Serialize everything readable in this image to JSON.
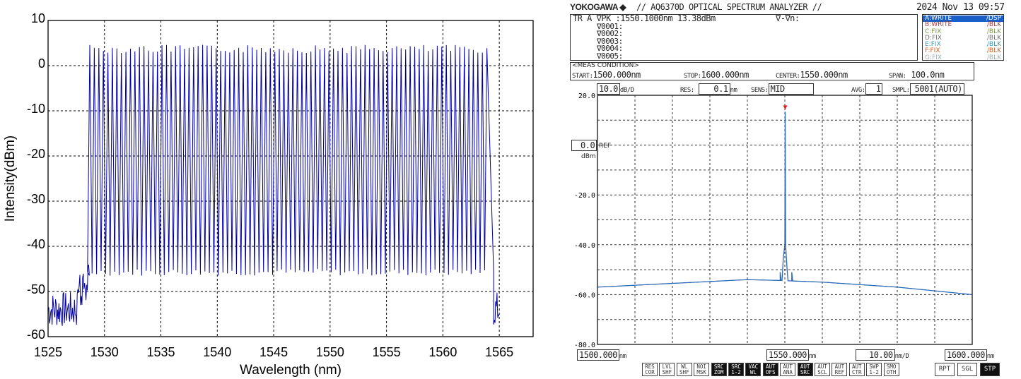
{
  "chart_data": [
    {
      "type": "line",
      "xlabel": "Wavelength (nm)",
      "ylabel": "Intensity(dBm)",
      "xlim": [
        1525,
        1568
      ],
      "ylim": [
        -60,
        10
      ],
      "xticks": [
        "1525",
        "1530",
        "1535",
        "1540",
        "1545",
        "1550",
        "1555",
        "1560",
        "1565"
      ],
      "yticks": [
        "10",
        "0",
        "-10",
        "-20",
        "-30",
        "-40",
        "-50",
        "-60"
      ],
      "grid": true,
      "line_color": "#0000a0",
      "series": [
        {
          "comb_start_nm": 1528.7,
          "comb_end_nm": 1564.3,
          "line_spacing_nm": 0.4,
          "peak_dbm": 4,
          "valley_dbm": -46,
          "noise_floor_dbm": [
            -58,
            -50
          ],
          "data_start_nm": 1525,
          "data_end_nm": 1565
        }
      ]
    },
    {
      "type": "line",
      "xlim": [
        1500,
        1600
      ],
      "ylim": [
        -80,
        20
      ],
      "yticks": [
        "20.0",
        "-20.0",
        "-40.0",
        "-60.0",
        "-80.0"
      ],
      "grid": true,
      "line_color": "#2a6ab8",
      "peak": {
        "x": 1550.1,
        "y": 13.38
      },
      "baseline": [
        [
          1500,
          -57
        ],
        [
          1520,
          -55.5
        ],
        [
          1540,
          -54
        ],
        [
          1548,
          -54.3
        ],
        [
          1560,
          -55
        ],
        [
          1580,
          -57
        ],
        [
          1600,
          -60
        ]
      ],
      "side_peaks": [
        [
          1548.7,
          -51
        ],
        [
          1551.9,
          -51
        ]
      ]
    }
  ],
  "osa": {
    "brand": "YOKOGAWA",
    "title": "// AQ6370D OPTICAL SPECTRUM ANALYZER //",
    "datetime": "2024 Nov 13 09:57",
    "marker_line": "TR A ∇PK  :1550.1000nm    13.38dBm",
    "delta_label": "∇-∇n:",
    "markers": [
      "∇0001:",
      "∇0002:",
      "∇0003:",
      "∇0004:",
      "∇0005:"
    ],
    "traces": [
      {
        "name": "A:WRITE",
        "mode": "/DSP",
        "color": "#ffffff",
        "bg": "#1a5fc8"
      },
      {
        "name": "B:WRITE",
        "mode": "/BLK",
        "color": "#b03a3a",
        "bg": ""
      },
      {
        "name": "C:FIX",
        "mode": "/BLK",
        "color": "#7a9a40",
        "bg": ""
      },
      {
        "name": "D:FIX",
        "mode": "/BLK",
        "color": "#707070",
        "bg": ""
      },
      {
        "name": "E:FIX",
        "mode": "/BLK",
        "color": "#3a9ab0",
        "bg": ""
      },
      {
        "name": "F:FIX",
        "mode": "/BLK",
        "color": "#e06020",
        "bg": ""
      },
      {
        "name": "G:FIX",
        "mode": "/BLK",
        "color": "#a0b0b0",
        "bg": ""
      }
    ],
    "meas_condition": "<MEAS CONDITION>",
    "start_label": "START:",
    "start": "1500.000nm",
    "stop_label": "STOP:",
    "stop": "1600.000nm",
    "center_label": "CENTER:",
    "center": "1550.000nm",
    "span_label": "SPAN:",
    "span": "100.0nm",
    "scale": "10.0",
    "scale_unit": "dB/D",
    "res_label": "RES:",
    "res": "0.1",
    "res_unit": "nm",
    "sens_label": "SENS:",
    "sens": "MID",
    "avg_label": "AVG:",
    "avg": "1",
    "smpl_label": "SMPL:",
    "smpl": "5001(AUTO)",
    "ref": "0.0",
    "ref_label": "REF",
    "ref_unit": "dBm",
    "x_left": "1500.000",
    "x_center": "1550.000",
    "x_right": "1600.000",
    "x_unit": "nm",
    "x_div": "10.00",
    "x_div_unit": "nm/D",
    "buttons": [
      {
        "label": "RES COR",
        "on": false
      },
      {
        "label": "LVL SHF",
        "on": false
      },
      {
        "label": "WL SHF",
        "on": false
      },
      {
        "label": "NOI MSK",
        "on": false
      },
      {
        "label": "SRC ZOM",
        "on": true
      },
      {
        "label": "SRC 1-2",
        "on": true
      },
      {
        "label": "VAC WL",
        "on": true
      },
      {
        "label": "AUT OFS",
        "on": true
      },
      {
        "label": "AUT ANA",
        "on": false
      },
      {
        "label": "AUT SRC",
        "on": true
      },
      {
        "label": "AUT SCL",
        "on": false
      },
      {
        "label": "AUT REF",
        "on": false
      },
      {
        "label": "AUT CTR",
        "on": false
      },
      {
        "label": "SWP 1-2",
        "on": false
      },
      {
        "label": "SMO OTH",
        "on": false
      }
    ],
    "mode_buttons": [
      {
        "label": "RPT",
        "on": false
      },
      {
        "label": "SGL",
        "on": false
      },
      {
        "label": "STP",
        "on": true
      }
    ]
  }
}
